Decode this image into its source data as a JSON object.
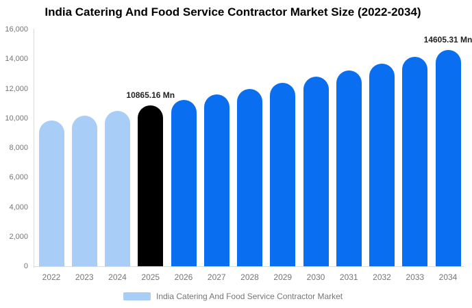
{
  "title": "India Catering And Food Service Contractor Market Size (2022-2034)",
  "legend": {
    "label": "India Catering And Food Service Contractor Market"
  },
  "colors": {
    "background": "#ffffff",
    "historical_bar": "#a8cef8",
    "base_year_bar": "#000000",
    "forecast_bar": "#0a6ef0",
    "axis_line": "#d9d9d9",
    "axis_text": "#757575",
    "title_text": "#000000",
    "annotation_text": "#222222"
  },
  "chart_data": {
    "type": "bar",
    "title": "India Catering And Food Service Contractor Market Size (2022-2034)",
    "unit": "Mn",
    "categories": [
      "2022",
      "2023",
      "2024",
      "2025",
      "2026",
      "2027",
      "2028",
      "2029",
      "2030",
      "2031",
      "2032",
      "2033",
      "2034"
    ],
    "values": [
      9844.9,
      10173.87,
      10513.85,
      10865.16,
      11228.24,
      11603.45,
      11991.19,
      12391.87,
      12805.94,
      13233.85,
      13676.06,
      14133.06,
      14605.31
    ],
    "bar_roles": [
      "historical",
      "historical",
      "historical",
      "base_year",
      "forecast",
      "forecast",
      "forecast",
      "forecast",
      "forecast",
      "forecast",
      "forecast",
      "forecast",
      "forecast"
    ],
    "annotations": [
      {
        "category": "2025",
        "text": "10865.16 Mn"
      },
      {
        "category": "2034",
        "text": "14605.31 Mn"
      }
    ],
    "ylim": [
      0,
      16000
    ],
    "y_ticks": [
      {
        "value": 0,
        "label": "0"
      },
      {
        "value": 2000,
        "label": "2,000"
      },
      {
        "value": 4000,
        "label": "4,000"
      },
      {
        "value": 6000,
        "label": "6,000"
      },
      {
        "value": 8000,
        "label": "8,000"
      },
      {
        "value": 10000,
        "label": "10,000"
      },
      {
        "value": 12000,
        "label": "12,000"
      },
      {
        "value": 14000,
        "label": "14,000"
      },
      {
        "value": 16000,
        "label": "16,000"
      }
    ],
    "grid": "off",
    "legend_position": "bottom"
  }
}
